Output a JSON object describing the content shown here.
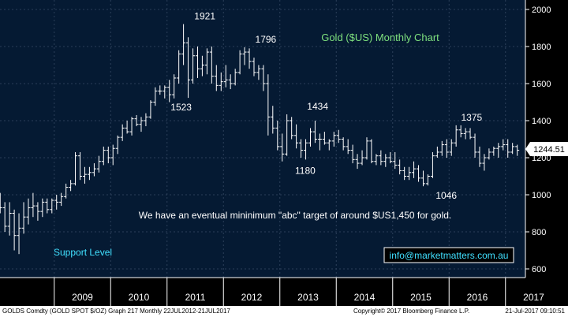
{
  "colors": {
    "background": "#000000",
    "plot_background": "#051a33",
    "grid": "#2c3f5a",
    "bars": "#ffffff",
    "title": "#7ee07e",
    "support_text": "#40e0ff",
    "email_text": "#40e0ff",
    "email_border": "#ffffff"
  },
  "chart_title": "Gold ($US) Monthly Chart",
  "annotation_text": "We have an eventual mininimum \"abc\" target of around $US1,450 for gold.",
  "support_label": "Support Level",
  "email": "info@marketmatters.com.au",
  "last_price_label": "1244.51",
  "footer": {
    "left": "GOLDS Comdty (GOLD SPOT $/OZ) Graph 217  Monthly 22JUL2012-21JUL2017",
    "center": "Copyright© 2017 Bloomberg Finance L.P.",
    "right": "21-Jul-2017 09:10:51"
  },
  "chart_data": {
    "type": "ohlc",
    "title": "Gold ($US) Monthly Chart",
    "y_tick_labels": [
      "2000",
      "1800",
      "1600",
      "1400",
      "1200",
      "1000",
      "800",
      "600"
    ],
    "y_ticks": [
      2000,
      1800,
      1600,
      1400,
      1200,
      1000,
      800,
      600
    ],
    "ylim": [
      570,
      2100
    ],
    "x_tick_labels": [
      "2009",
      "2010",
      "2011",
      "2012",
      "2013",
      "2014",
      "2015",
      "2016",
      "2017"
    ],
    "xlim": [
      2008.0,
      2017.75
    ],
    "grid": true,
    "price_labels": [
      {
        "text": "1921",
        "x": 2011.67,
        "y": 1921,
        "pos": "above"
      },
      {
        "text": "1523",
        "x": 2011.25,
        "y": 1523,
        "pos": "below"
      },
      {
        "text": "1796",
        "x": 2012.75,
        "y": 1796,
        "pos": "above"
      },
      {
        "text": "1434",
        "x": 2013.67,
        "y": 1434,
        "pos": "above"
      },
      {
        "text": "1180",
        "x": 2013.45,
        "y": 1180,
        "pos": "below"
      },
      {
        "text": "1375",
        "x": 2016.4,
        "y": 1375,
        "pos": "above"
      },
      {
        "text": "1046",
        "x": 2015.95,
        "y": 1046,
        "pos": "below"
      }
    ],
    "last_price": 1244.51,
    "series": [
      {
        "name": "GOLD SPOT $/OZ",
        "ohlc": [
          [
            2008.0,
            990,
            1010,
            900,
            930
          ],
          [
            2008.083,
            930,
            960,
            800,
            830
          ],
          [
            2008.167,
            830,
            960,
            780,
            900
          ],
          [
            2008.25,
            900,
            920,
            700,
            780
          ],
          [
            2008.333,
            780,
            900,
            680,
            820
          ],
          [
            2008.417,
            820,
            960,
            790,
            880
          ],
          [
            2008.5,
            880,
            980,
            840,
            930
          ],
          [
            2008.583,
            930,
            1010,
            880,
            940
          ],
          [
            2008.667,
            940,
            960,
            860,
            910
          ],
          [
            2008.75,
            910,
            980,
            880,
            960
          ],
          [
            2008.833,
            960,
            980,
            900,
            920
          ],
          [
            2008.917,
            920,
            980,
            900,
            970
          ],
          [
            2009.0,
            970,
            1000,
            920,
            960
          ],
          [
            2009.083,
            960,
            1010,
            940,
            990
          ],
          [
            2009.167,
            990,
            1060,
            980,
            1040
          ],
          [
            2009.25,
            1040,
            1080,
            1020,
            1060
          ],
          [
            2009.333,
            1060,
            1230,
            1050,
            1210
          ],
          [
            2009.417,
            1210,
            1230,
            1080,
            1100
          ],
          [
            2009.5,
            1100,
            1150,
            1060,
            1110
          ],
          [
            2009.583,
            1110,
            1150,
            1080,
            1120
          ],
          [
            2009.667,
            1120,
            1170,
            1100,
            1140
          ],
          [
            2009.75,
            1140,
            1210,
            1120,
            1180
          ],
          [
            2009.833,
            1180,
            1260,
            1160,
            1240
          ],
          [
            2009.917,
            1240,
            1260,
            1170,
            1200
          ],
          [
            2010.0,
            1200,
            1270,
            1160,
            1250
          ],
          [
            2010.083,
            1250,
            1320,
            1220,
            1310
          ],
          [
            2010.167,
            1310,
            1380,
            1290,
            1360
          ],
          [
            2010.25,
            1360,
            1400,
            1330,
            1340
          ],
          [
            2010.333,
            1340,
            1420,
            1320,
            1410
          ],
          [
            2010.417,
            1410,
            1430,
            1370,
            1380
          ],
          [
            2010.5,
            1380,
            1420,
            1340,
            1400
          ],
          [
            2010.583,
            1400,
            1440,
            1370,
            1420
          ],
          [
            2010.667,
            1420,
            1510,
            1410,
            1500
          ],
          [
            2010.75,
            1500,
            1580,
            1480,
            1560
          ],
          [
            2010.833,
            1560,
            1590,
            1540,
            1560
          ],
          [
            2010.917,
            1560,
            1590,
            1520,
            1580
          ],
          [
            2011.0,
            1580,
            1620,
            1500,
            1540
          ],
          [
            2011.083,
            1540,
            1650,
            1520,
            1630
          ],
          [
            2011.167,
            1630,
            1780,
            1600,
            1760
          ],
          [
            2011.25,
            1760,
            1921,
            1700,
            1820
          ],
          [
            2011.333,
            1820,
            1850,
            1523,
            1620
          ],
          [
            2011.417,
            1620,
            1790,
            1600,
            1750
          ],
          [
            2011.5,
            1750,
            1800,
            1630,
            1680
          ],
          [
            2011.583,
            1680,
            1750,
            1640,
            1700
          ],
          [
            2011.667,
            1700,
            1790,
            1650,
            1770
          ],
          [
            2011.75,
            1770,
            1800,
            1600,
            1640
          ],
          [
            2011.833,
            1640,
            1700,
            1560,
            1590
          ],
          [
            2011.917,
            1590,
            1660,
            1560,
            1610
          ],
          [
            2012.0,
            1610,
            1700,
            1580,
            1620
          ],
          [
            2012.083,
            1620,
            1650,
            1570,
            1600
          ],
          [
            2012.167,
            1600,
            1680,
            1590,
            1660
          ],
          [
            2012.25,
            1660,
            1780,
            1650,
            1760
          ],
          [
            2012.333,
            1760,
            1796,
            1700,
            1770
          ],
          [
            2012.417,
            1770,
            1790,
            1680,
            1720
          ],
          [
            2012.5,
            1720,
            1740,
            1640,
            1660
          ],
          [
            2012.583,
            1660,
            1700,
            1620,
            1680
          ],
          [
            2012.667,
            1680,
            1700,
            1560,
            1600
          ],
          [
            2012.75,
            1600,
            1650,
            1320,
            1420
          ],
          [
            2012.833,
            1420,
            1480,
            1330,
            1360
          ],
          [
            2012.917,
            1360,
            1400,
            1240,
            1260
          ],
          [
            2013.0,
            1260,
            1330,
            1180,
            1220
          ],
          [
            2013.083,
            1220,
            1434,
            1210,
            1400
          ],
          [
            2013.167,
            1400,
            1420,
            1300,
            1320
          ],
          [
            2013.25,
            1320,
            1380,
            1250,
            1280
          ],
          [
            2013.333,
            1280,
            1300,
            1200,
            1240
          ],
          [
            2013.417,
            1240,
            1300,
            1190,
            1280
          ],
          [
            2013.5,
            1280,
            1360,
            1260,
            1340
          ],
          [
            2013.583,
            1340,
            1400,
            1280,
            1300
          ],
          [
            2013.667,
            1300,
            1330,
            1240,
            1300
          ],
          [
            2013.75,
            1300,
            1340,
            1270,
            1280
          ],
          [
            2013.833,
            1280,
            1300,
            1240,
            1290
          ],
          [
            2013.917,
            1290,
            1340,
            1260,
            1320
          ],
          [
            2014.0,
            1320,
            1350,
            1280,
            1300
          ],
          [
            2014.083,
            1300,
            1310,
            1240,
            1260
          ],
          [
            2014.167,
            1260,
            1300,
            1220,
            1240
          ],
          [
            2014.25,
            1240,
            1270,
            1170,
            1190
          ],
          [
            2014.333,
            1190,
            1220,
            1140,
            1170
          ],
          [
            2014.417,
            1170,
            1240,
            1160,
            1200
          ],
          [
            2014.5,
            1200,
            1310,
            1190,
            1290
          ],
          [
            2014.583,
            1290,
            1300,
            1170,
            1180
          ],
          [
            2014.667,
            1180,
            1220,
            1160,
            1210
          ],
          [
            2014.75,
            1210,
            1240,
            1160,
            1180
          ],
          [
            2014.833,
            1180,
            1220,
            1150,
            1200
          ],
          [
            2014.917,
            1200,
            1230,
            1170,
            1180
          ],
          [
            2015.0,
            1180,
            1230,
            1140,
            1160
          ],
          [
            2015.083,
            1160,
            1190,
            1110,
            1130
          ],
          [
            2015.167,
            1130,
            1150,
            1080,
            1100
          ],
          [
            2015.25,
            1100,
            1150,
            1080,
            1120
          ],
          [
            2015.333,
            1120,
            1180,
            1090,
            1140
          ],
          [
            2015.417,
            1140,
            1160,
            1070,
            1090
          ],
          [
            2015.5,
            1090,
            1130,
            1046,
            1060
          ],
          [
            2015.583,
            1060,
            1110,
            1050,
            1100
          ],
          [
            2015.667,
            1100,
            1230,
            1090,
            1210
          ],
          [
            2015.75,
            1210,
            1260,
            1200,
            1230
          ],
          [
            2015.833,
            1230,
            1290,
            1210,
            1270
          ],
          [
            2015.917,
            1270,
            1300,
            1200,
            1230
          ],
          [
            2016.0,
            1230,
            1300,
            1210,
            1280
          ],
          [
            2016.083,
            1280,
            1375,
            1260,
            1350
          ],
          [
            2016.167,
            1350,
            1375,
            1310,
            1330
          ],
          [
            2016.25,
            1330,
            1360,
            1300,
            1340
          ],
          [
            2016.333,
            1340,
            1360,
            1300,
            1310
          ],
          [
            2016.417,
            1310,
            1330,
            1200,
            1230
          ],
          [
            2016.5,
            1230,
            1260,
            1150,
            1170
          ],
          [
            2016.583,
            1170,
            1220,
            1130,
            1200
          ],
          [
            2016.667,
            1200,
            1250,
            1190,
            1230
          ],
          [
            2016.75,
            1230,
            1260,
            1210,
            1250
          ],
          [
            2016.833,
            1250,
            1280,
            1200,
            1260
          ],
          [
            2016.917,
            1260,
            1300,
            1240,
            1270
          ],
          [
            2017.0,
            1270,
            1300,
            1200,
            1230
          ],
          [
            2017.083,
            1230,
            1280,
            1220,
            1260
          ],
          [
            2017.167,
            1260,
            1270,
            1210,
            1240
          ]
        ]
      }
    ]
  }
}
